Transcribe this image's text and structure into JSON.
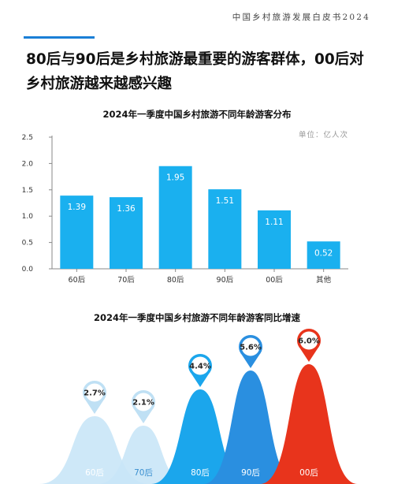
{
  "header": {
    "text": "中国乡村旅游发展白皮书2024"
  },
  "headline": "80后与90后是乡村旅游最重要的游客群体，00后对乡村旅游越来越感兴趣",
  "colors": {
    "accent": "#1a7fd6",
    "bar": "#1ab0ef",
    "peak_light": "#c9e6f7",
    "peak_mid": "#1ba6ec",
    "peak_blue": "#2a8fe0",
    "peak_red": "#e8341c"
  },
  "chart_data": [
    {
      "type": "bar",
      "title": "2024年一季度中国乡村旅游不同年龄游客分布",
      "unit": "单位：亿人次",
      "categories": [
        "60后",
        "70后",
        "80后",
        "90后",
        "00后",
        "其他"
      ],
      "values": [
        1.39,
        1.36,
        1.95,
        1.51,
        1.11,
        0.52
      ],
      "value_labels": [
        "1.39",
        "1.36",
        "1.95",
        "1.51",
        "1.11",
        "0.52"
      ],
      "ylim": [
        0,
        2.5
      ],
      "yticks": [
        "0.0",
        "0.5",
        "1.0",
        "1.5",
        "2.0",
        "2.5"
      ],
      "grid": false
    },
    {
      "type": "area",
      "title": "2024年一季度中国乡村旅游不同年龄游客同比增速",
      "categories": [
        "60后",
        "70后",
        "80后",
        "90后",
        "00后"
      ],
      "values": [
        2.7,
        2.1,
        4.4,
        5.6,
        6.0
      ],
      "value_labels": [
        "2.7%",
        "2.1%",
        "4.4%",
        "5.6%",
        "6.0%"
      ]
    }
  ]
}
